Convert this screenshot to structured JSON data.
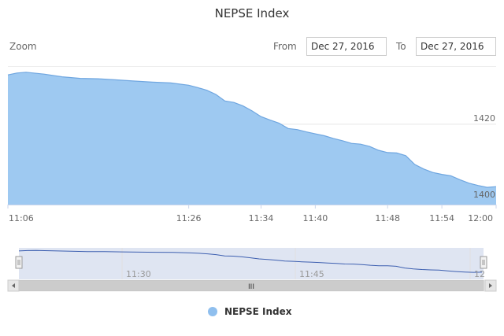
{
  "header": {
    "title": "NEPSE Index",
    "zoom_label": "Zoom",
    "from_label": "From",
    "to_label": "To",
    "from_value": "Dec 27, 2016",
    "to_value": "Dec 27, 2016"
  },
  "navigator": {
    "labels": [
      "11:30",
      "11:45",
      "12"
    ],
    "scrollbar_grip": "III"
  },
  "colors": {
    "area_fill": "#9ec9f1",
    "area_line": "#6fa6e0",
    "navigator_mask": "#d9e1f0",
    "navigator_line": "#3d5fb0"
  },
  "chart_data": {
    "type": "area",
    "title": "NEPSE Index",
    "xlabel": "",
    "ylabel": "",
    "x_ticks": [
      "11:06",
      "11:26",
      "11:34",
      "11:40",
      "11:48",
      "11:54",
      "12:00"
    ],
    "y_ticks": [
      1400,
      1420
    ],
    "ylim": [
      1399,
      1435
    ],
    "grid": true,
    "legend": "bottom-center",
    "series": [
      {
        "name": "NEPSE Index",
        "x": [
          "11:06",
          "11:07",
          "11:08",
          "11:10",
          "11:12",
          "11:14",
          "11:16",
          "11:18",
          "11:20",
          "11:22",
          "11:24",
          "11:26",
          "11:27",
          "11:28",
          "11:29",
          "11:30",
          "11:31",
          "11:32",
          "11:33",
          "11:34",
          "11:35",
          "11:36",
          "11:37",
          "11:38",
          "11:39",
          "11:40",
          "11:41",
          "11:42",
          "11:43",
          "11:44",
          "11:45",
          "11:46",
          "11:47",
          "11:48",
          "11:49",
          "11:50",
          "11:51",
          "11:52",
          "11:53",
          "11:54",
          "11:55",
          "11:56",
          "11:57",
          "11:58",
          "11:59",
          "12:00"
        ],
        "values": [
          1432.9,
          1433.4,
          1433.6,
          1433.1,
          1432.4,
          1432.0,
          1431.9,
          1431.6,
          1431.3,
          1431.0,
          1430.8,
          1430.2,
          1429.6,
          1428.9,
          1427.8,
          1426.1,
          1425.7,
          1424.8,
          1423.5,
          1422.0,
          1421.1,
          1420.3,
          1418.9,
          1418.6,
          1418.0,
          1417.5,
          1417.0,
          1416.3,
          1415.7,
          1415.0,
          1414.8,
          1414.2,
          1413.2,
          1412.6,
          1412.5,
          1411.8,
          1409.5,
          1408.3,
          1407.4,
          1406.9,
          1406.5,
          1405.5,
          1404.6,
          1404.0,
          1403.5,
          1403.7
        ]
      }
    ]
  }
}
